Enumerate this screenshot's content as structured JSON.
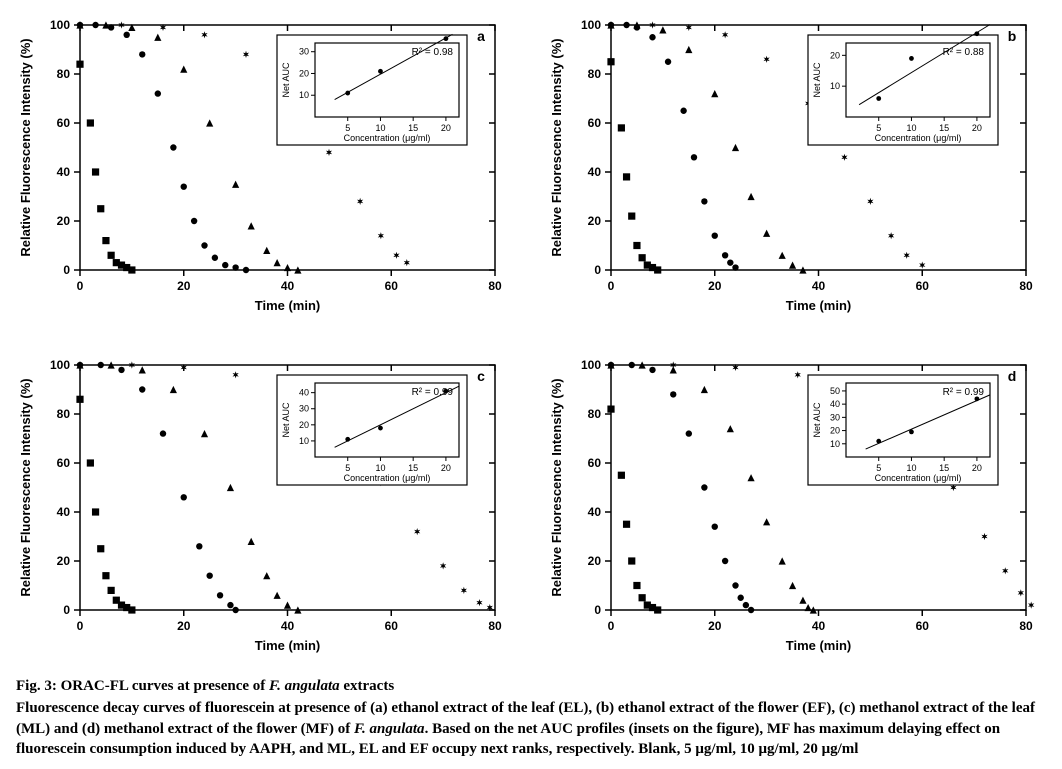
{
  "figure": {
    "panel_labels": [
      "a",
      "b",
      "c",
      "d"
    ],
    "plot_bg": "#ffffff",
    "axis_color": "#000000",
    "marker_color": "#000000",
    "line_color": "#000000",
    "grid_color": "none",
    "tick_fontsize": 12,
    "label_fontsize": 13,
    "axis_linewidth": 1.5,
    "x_label": "Time (min)",
    "y_label": "Relative Fluorescence Intensity (%)",
    "inset_x_label": "Concentration (μg/ml)",
    "inset_y_label": "Net AUC",
    "markers": {
      "blank": "square",
      "5ug": "circle",
      "10ug": "triangle",
      "20ug": "star"
    },
    "panels": {
      "a": {
        "x_ticks": [
          0,
          20,
          40,
          60,
          80
        ],
        "y_ticks": [
          0,
          20,
          40,
          60,
          80,
          100
        ],
        "inset": {
          "r2": "R² = 0.98",
          "x_ticks": [
            5,
            10,
            15,
            20
          ],
          "y_ticks": [
            10,
            20,
            30
          ],
          "points": [
            [
              5,
              11
            ],
            [
              10,
              21
            ],
            [
              20,
              36
            ]
          ],
          "line": [
            [
              3,
              8
            ],
            [
              21,
              38
            ]
          ]
        },
        "series": {
          "blank": [
            [
              0,
              84
            ],
            [
              2,
              60
            ],
            [
              3,
              40
            ],
            [
              4,
              25
            ],
            [
              5,
              12
            ],
            [
              6,
              6
            ],
            [
              7,
              3
            ],
            [
              8,
              2
            ],
            [
              9,
              1
            ],
            [
              10,
              0
            ]
          ],
          "5ug": [
            [
              0,
              100
            ],
            [
              3,
              100
            ],
            [
              6,
              99
            ],
            [
              9,
              96
            ],
            [
              12,
              88
            ],
            [
              15,
              72
            ],
            [
              18,
              50
            ],
            [
              20,
              34
            ],
            [
              22,
              20
            ],
            [
              24,
              10
            ],
            [
              26,
              5
            ],
            [
              28,
              2
            ],
            [
              30,
              1
            ],
            [
              32,
              0
            ]
          ],
          "10ug": [
            [
              0,
              100
            ],
            [
              5,
              100
            ],
            [
              10,
              99
            ],
            [
              15,
              95
            ],
            [
              20,
              82
            ],
            [
              25,
              60
            ],
            [
              30,
              35
            ],
            [
              33,
              18
            ],
            [
              36,
              8
            ],
            [
              38,
              3
            ],
            [
              40,
              1
            ],
            [
              42,
              0
            ]
          ],
          "20ug": [
            [
              0,
              100
            ],
            [
              8,
              100
            ],
            [
              16,
              99
            ],
            [
              24,
              96
            ],
            [
              32,
              88
            ],
            [
              40,
              72
            ],
            [
              48,
              48
            ],
            [
              54,
              28
            ],
            [
              58,
              14
            ],
            [
              61,
              6
            ],
            [
              63,
              3
            ]
          ]
        }
      },
      "b": {
        "x_ticks": [
          0,
          20,
          40,
          60,
          80
        ],
        "y_ticks": [
          0,
          20,
          40,
          60,
          80,
          100
        ],
        "inset": {
          "r2": "R² = 0.88",
          "x_ticks": [
            5,
            10,
            15,
            20
          ],
          "y_ticks": [
            10,
            20
          ],
          "points": [
            [
              5,
              6
            ],
            [
              10,
              19
            ],
            [
              20,
              27
            ]
          ],
          "line": [
            [
              2,
              4
            ],
            [
              22,
              30
            ]
          ]
        },
        "series": {
          "blank": [
            [
              0,
              85
            ],
            [
              2,
              58
            ],
            [
              3,
              38
            ],
            [
              4,
              22
            ],
            [
              5,
              10
            ],
            [
              6,
              5
            ],
            [
              7,
              2
            ],
            [
              8,
              1
            ],
            [
              9,
              0
            ]
          ],
          "5ug": [
            [
              0,
              100
            ],
            [
              3,
              100
            ],
            [
              5,
              99
            ],
            [
              8,
              95
            ],
            [
              11,
              85
            ],
            [
              14,
              65
            ],
            [
              16,
              46
            ],
            [
              18,
              28
            ],
            [
              20,
              14
            ],
            [
              22,
              6
            ],
            [
              23,
              3
            ],
            [
              24,
              1
            ]
          ],
          "10ug": [
            [
              0,
              100
            ],
            [
              5,
              100
            ],
            [
              10,
              98
            ],
            [
              15,
              90
            ],
            [
              20,
              72
            ],
            [
              24,
              50
            ],
            [
              27,
              30
            ],
            [
              30,
              15
            ],
            [
              33,
              6
            ],
            [
              35,
              2
            ],
            [
              37,
              0
            ]
          ],
          "20ug": [
            [
              0,
              100
            ],
            [
              8,
              100
            ],
            [
              15,
              99
            ],
            [
              22,
              96
            ],
            [
              30,
              86
            ],
            [
              38,
              68
            ],
            [
              45,
              46
            ],
            [
              50,
              28
            ],
            [
              54,
              14
            ],
            [
              57,
              6
            ],
            [
              60,
              2
            ]
          ]
        }
      },
      "c": {
        "x_ticks": [
          0,
          20,
          40,
          60,
          80
        ],
        "y_ticks": [
          0,
          20,
          40,
          60,
          80,
          100
        ],
        "inset": {
          "r2": "R² = 0.99",
          "x_ticks": [
            5,
            10,
            15,
            20
          ],
          "y_ticks": [
            10,
            20,
            30,
            40
          ],
          "points": [
            [
              5,
              11
            ],
            [
              10,
              18
            ],
            [
              20,
              41
            ]
          ],
          "line": [
            [
              3,
              6
            ],
            [
              22,
              44
            ]
          ]
        },
        "series": {
          "blank": [
            [
              0,
              86
            ],
            [
              2,
              60
            ],
            [
              3,
              40
            ],
            [
              4,
              25
            ],
            [
              5,
              14
            ],
            [
              6,
              8
            ],
            [
              7,
              4
            ],
            [
              8,
              2
            ],
            [
              9,
              1
            ],
            [
              10,
              0
            ]
          ],
          "5ug": [
            [
              0,
              100
            ],
            [
              4,
              100
            ],
            [
              8,
              98
            ],
            [
              12,
              90
            ],
            [
              16,
              72
            ],
            [
              20,
              46
            ],
            [
              23,
              26
            ],
            [
              25,
              14
            ],
            [
              27,
              6
            ],
            [
              29,
              2
            ],
            [
              30,
              0
            ]
          ],
          "10ug": [
            [
              0,
              100
            ],
            [
              6,
              100
            ],
            [
              12,
              98
            ],
            [
              18,
              90
            ],
            [
              24,
              72
            ],
            [
              29,
              50
            ],
            [
              33,
              28
            ],
            [
              36,
              14
            ],
            [
              38,
              6
            ],
            [
              40,
              2
            ],
            [
              42,
              0
            ]
          ],
          "20ug": [
            [
              0,
              100
            ],
            [
              10,
              100
            ],
            [
              20,
              99
            ],
            [
              30,
              96
            ],
            [
              40,
              88
            ],
            [
              50,
              72
            ],
            [
              58,
              52
            ],
            [
              65,
              32
            ],
            [
              70,
              18
            ],
            [
              74,
              8
            ],
            [
              77,
              3
            ],
            [
              79,
              1
            ]
          ]
        }
      },
      "d": {
        "x_ticks": [
          0,
          20,
          40,
          60,
          80
        ],
        "y_ticks": [
          0,
          20,
          40,
          60,
          80,
          100
        ],
        "inset": {
          "r2": "R² = 0.99",
          "x_ticks": [
            5,
            10,
            15,
            20
          ],
          "y_ticks": [
            10,
            20,
            30,
            40,
            50
          ],
          "points": [
            [
              5,
              12
            ],
            [
              10,
              19
            ],
            [
              20,
              44
            ]
          ],
          "line": [
            [
              3,
              6
            ],
            [
              22,
              47
            ]
          ]
        },
        "series": {
          "blank": [
            [
              0,
              82
            ],
            [
              2,
              55
            ],
            [
              3,
              35
            ],
            [
              4,
              20
            ],
            [
              5,
              10
            ],
            [
              6,
              5
            ],
            [
              7,
              2
            ],
            [
              8,
              1
            ],
            [
              9,
              0
            ]
          ],
          "5ug": [
            [
              0,
              100
            ],
            [
              4,
              100
            ],
            [
              8,
              98
            ],
            [
              12,
              88
            ],
            [
              15,
              72
            ],
            [
              18,
              50
            ],
            [
              20,
              34
            ],
            [
              22,
              20
            ],
            [
              24,
              10
            ],
            [
              25,
              5
            ],
            [
              26,
              2
            ],
            [
              27,
              0
            ]
          ],
          "10ug": [
            [
              0,
              100
            ],
            [
              6,
              100
            ],
            [
              12,
              98
            ],
            [
              18,
              90
            ],
            [
              23,
              74
            ],
            [
              27,
              54
            ],
            [
              30,
              36
            ],
            [
              33,
              20
            ],
            [
              35,
              10
            ],
            [
              37,
              4
            ],
            [
              38,
              1
            ],
            [
              39,
              0
            ]
          ],
          "20ug": [
            [
              0,
              100
            ],
            [
              12,
              100
            ],
            [
              24,
              99
            ],
            [
              36,
              96
            ],
            [
              48,
              86
            ],
            [
              58,
              70
            ],
            [
              66,
              50
            ],
            [
              72,
              30
            ],
            [
              76,
              16
            ],
            [
              79,
              7
            ],
            [
              81,
              2
            ]
          ]
        }
      }
    }
  },
  "caption": {
    "title_pre": "Fig. 3: ORAC-FL curves at presence of ",
    "title_em": "F. angulata",
    "title_post": " extracts",
    "body_1": "Fluorescence decay curves of fluorescein at presence of (a) ethanol extract of the leaf (EL), (b) ethanol extract of the flower (EF), (c) methanol extract of the leaf (ML) and (d) methanol extract of the flower (MF) of ",
    "body_em": "F. angulata",
    "body_2": ". Based on the net AUC profiles (insets on the figure), MF has maximum delaying effect on fluorescein consumption induced by AAPH, and ML, EL and EF occupy next ranks, respectively. Blank, 5 μg/ml, 10 μg/ml, 20 μg/ml"
  }
}
